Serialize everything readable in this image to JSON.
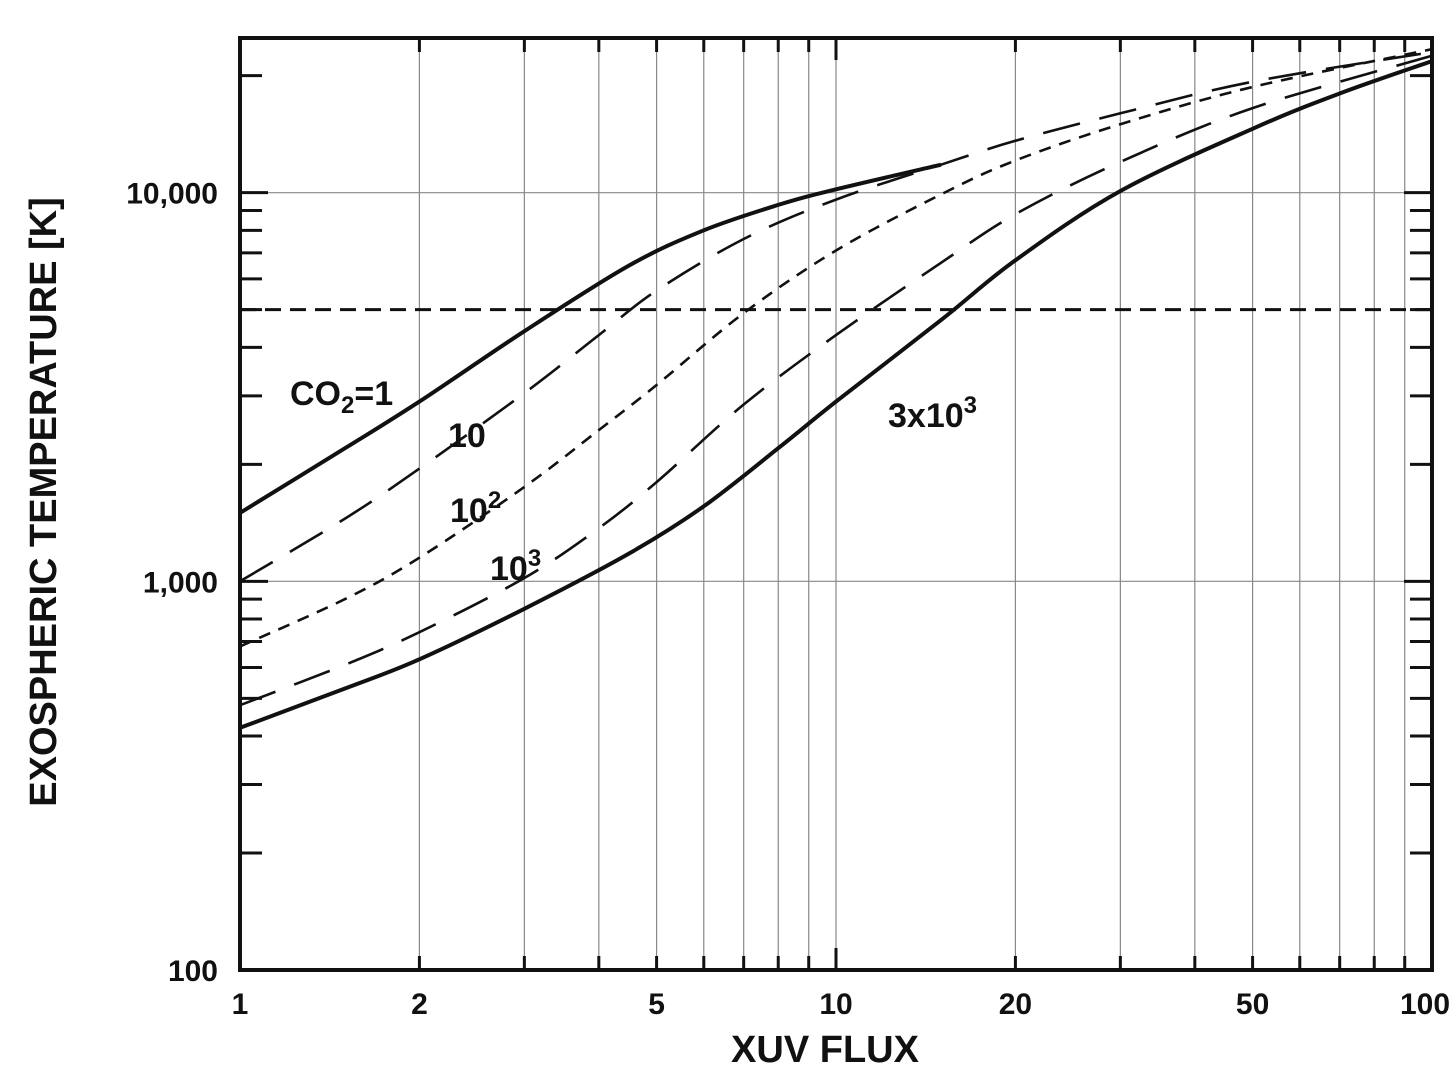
{
  "chart_data": {
    "type": "line",
    "title": "",
    "xlabel": "XUV FLUX",
    "ylabel": "EXOSPHERIC TEMPERATURE [K]",
    "xscale": "log",
    "yscale": "log",
    "xlim": [
      1,
      100
    ],
    "ylim": [
      100,
      25000
    ],
    "grid": true,
    "x_tick_labels": [
      {
        "value": 1,
        "label": "1"
      },
      {
        "value": 2,
        "label": "2"
      },
      {
        "value": 5,
        "label": "5"
      },
      {
        "value": 10,
        "label": "10"
      },
      {
        "value": 20,
        "label": "20"
      },
      {
        "value": 50,
        "label": "50"
      },
      {
        "value": 100,
        "label": "100"
      }
    ],
    "y_tick_labels": [
      {
        "value": 100,
        "label": "100"
      },
      {
        "value": 1000,
        "label": "1,000"
      },
      {
        "value": 10000,
        "label": "10,000"
      }
    ],
    "reference_line": {
      "y": 5000,
      "style": "dashed"
    },
    "series": [
      {
        "style": "solid",
        "points": [
          [
            1,
            1500
          ],
          [
            1.5,
            2200
          ],
          [
            2,
            2900
          ],
          [
            3,
            4400
          ],
          [
            4.5,
            6500
          ],
          [
            6,
            8000
          ],
          [
            8,
            9300
          ],
          [
            10,
            10200
          ],
          [
            15,
            11800
          ]
        ]
      },
      {
        "style": "long-dash",
        "points": [
          [
            1,
            1000
          ],
          [
            1.5,
            1450
          ],
          [
            2,
            1950
          ],
          [
            3,
            3050
          ],
          [
            4,
            4300
          ],
          [
            5,
            5600
          ],
          [
            7,
            7600
          ],
          [
            10,
            9600
          ],
          [
            15,
            11800
          ],
          [
            20,
            13600
          ],
          [
            30,
            16000
          ],
          [
            50,
            19300
          ],
          [
            100,
            23000
          ]
        ]
      },
      {
        "style": "short-dash",
        "points": [
          [
            1,
            680
          ],
          [
            1.5,
            900
          ],
          [
            2,
            1150
          ],
          [
            3,
            1750
          ],
          [
            4,
            2450
          ],
          [
            5,
            3200
          ],
          [
            7,
            4900
          ],
          [
            10,
            7100
          ],
          [
            15,
            9900
          ],
          [
            20,
            12100
          ],
          [
            30,
            15000
          ],
          [
            50,
            18700
          ],
          [
            100,
            23400
          ]
        ]
      },
      {
        "style": "long-dash",
        "points": [
          [
            1,
            480
          ],
          [
            1.5,
            610
          ],
          [
            2,
            740
          ],
          [
            3,
            1020
          ],
          [
            4,
            1370
          ],
          [
            5,
            1800
          ],
          [
            7,
            2850
          ],
          [
            10,
            4300
          ],
          [
            15,
            6600
          ],
          [
            20,
            8800
          ],
          [
            30,
            12000
          ],
          [
            50,
            16500
          ],
          [
            100,
            22500
          ]
        ]
      },
      {
        "style": "solid",
        "points": [
          [
            1,
            420
          ],
          [
            1.5,
            530
          ],
          [
            2,
            630
          ],
          [
            3,
            850
          ],
          [
            4.5,
            1180
          ],
          [
            6,
            1560
          ],
          [
            8,
            2200
          ],
          [
            10,
            2900
          ],
          [
            15,
            4700
          ],
          [
            20,
            6700
          ],
          [
            30,
            10100
          ],
          [
            50,
            14600
          ],
          [
            70,
            18000
          ],
          [
            100,
            21800
          ]
        ]
      }
    ],
    "annotations": [
      {
        "base": "CO",
        "subscript": "2",
        "text": "=1"
      },
      {
        "base": "10",
        "superscript": ""
      },
      {
        "base": "10",
        "superscript": "2"
      },
      {
        "base": "10",
        "superscript": "3"
      },
      {
        "base": "3x10",
        "superscript": "3"
      }
    ]
  }
}
